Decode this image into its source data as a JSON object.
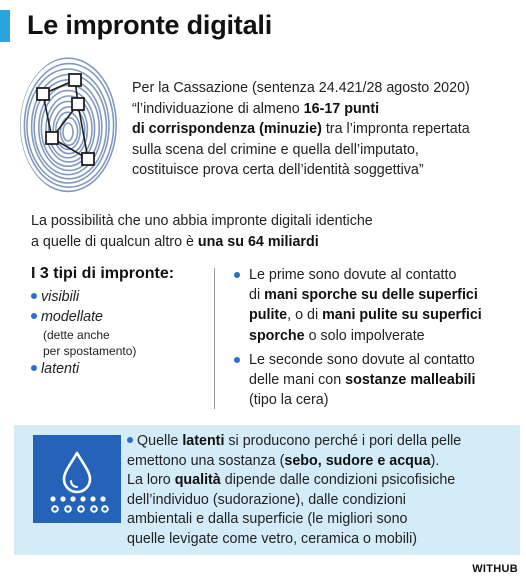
{
  "title": "Le impronte digitali",
  "colors": {
    "accent": "#2aa3df",
    "icon_bg": "#2563b8",
    "box_bg": "#d4ecf8",
    "bullet": "#2a6fc9"
  },
  "icons": {
    "fingerprint": "fingerprint-with-minutiae-network-icon",
    "drop": "sweat-drop-on-skin-icon"
  },
  "quote": {
    "l1": "Per la Cassazione (sentenza 24.421/28 agosto 2020)",
    "l2a": "“l’individuazione di almeno ",
    "l2b": "16-17 punti",
    "l3a": "di corrispondenza (minuzie)",
    "l3b": " tra l’impronta repertata",
    "l4": "sulla scena del crimine e quella dell’imputato,",
    "l5": "costituisce prova certa dell’identità soggettiva”"
  },
  "probability": {
    "l1": "La possibilità che uno abbia impronte digitali identiche",
    "l2a": "a quelle di qualcun altro è ",
    "l2b": "una su 64 miliardi"
  },
  "types": {
    "heading": "I 3 tipi di impronte:",
    "items": [
      "visibili",
      "modellate",
      "latenti"
    ],
    "note1": "(dette anche",
    "note2": "per spostamento)"
  },
  "causes": {
    "c1": {
      "l1": "Le prime sono dovute al contatto",
      "l2a": "di ",
      "l2b": "mani sporche su delle superfici",
      "l3a": "pulite",
      "l3b": ", o di ",
      "l3c": "mani pulite su superfici",
      "l4a": "sporche",
      "l4b": " o solo impolverate"
    },
    "c2": {
      "l1": "Le seconde sono dovute al contatto",
      "l2a": "delle mani con ",
      "l2b": "sostanze malleabili",
      "l3": "(tipo la cera)"
    }
  },
  "latent": {
    "l1a": "Quelle ",
    "l1b": "latenti",
    "l1c": " si producono perché i pori della pelle",
    "l2a": "emettono una sostanza (",
    "l2b": "sebo, sudore e acqua",
    "l2c": ").",
    "l3a": "La loro ",
    "l3b": "qualità",
    "l3c": " dipende dalle condizioni psicofisiche",
    "l4": "dell’individuo (sudorazione), dalle condizioni",
    "l5": "ambientali e dalla superficie (le migliori sono",
    "l6": "quelle levigate come vetro, ceramica o mobili)"
  },
  "credit": "WITHUB"
}
